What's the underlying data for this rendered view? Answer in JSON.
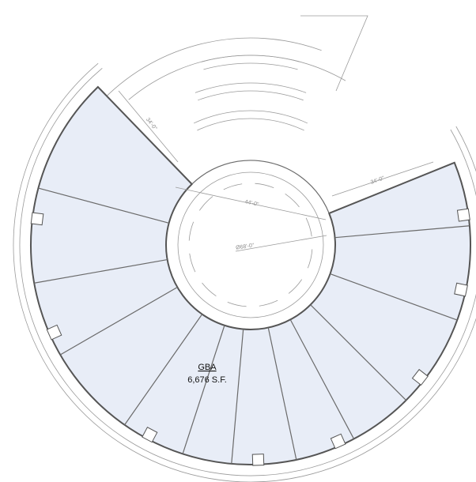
{
  "labels": {
    "gba": "GBA",
    "area": "6,676 S.F."
  },
  "dimensions": [
    "44'-0\"",
    "Ø68'-0\"",
    "34'-0\"",
    "34'-0\""
  ]
}
